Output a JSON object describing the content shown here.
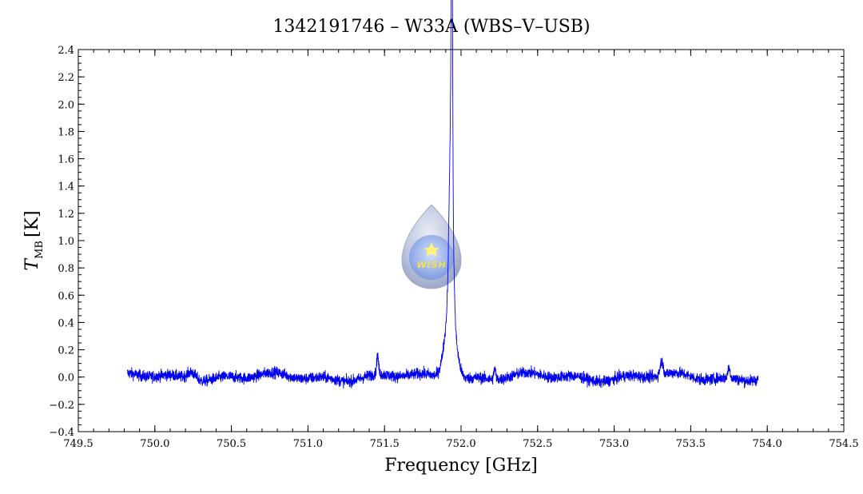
{
  "chart_data": {
    "type": "line",
    "title": "1342191746 – W33A (WBS–V–USB)",
    "xlabel": "Frequency [GHz]",
    "ylabel_main": "T",
    "ylabel_sub": "MB",
    "ylabel_unit": "[K]",
    "xlim": [
      749.5,
      754.5
    ],
    "ylim": [
      -0.4,
      2.4
    ],
    "x_ticks": [
      749.5,
      750.0,
      750.5,
      751.0,
      751.5,
      752.0,
      752.5,
      753.0,
      753.5,
      754.0,
      754.5
    ],
    "x_tick_labels": [
      "749.5",
      "750.0",
      "750.5",
      "751.0",
      "751.5",
      "752.0",
      "752.5",
      "753.0",
      "753.5",
      "754.0",
      "754.5"
    ],
    "y_ticks": [
      -0.4,
      -0.2,
      0.0,
      0.2,
      0.4,
      0.6,
      0.8,
      1.0,
      1.2,
      1.4,
      1.6,
      1.8,
      2.0,
      2.2,
      2.4
    ],
    "y_tick_labels": [
      "−0.4",
      "−0.2",
      "0.0",
      "0.2",
      "0.4",
      "0.6",
      "0.8",
      "1.0",
      "1.2",
      "1.4",
      "1.6",
      "1.8",
      "2.0",
      "2.2",
      "2.4"
    ],
    "grid": false,
    "series_color": "#0000ee",
    "spectrum": {
      "x_start": 749.82,
      "x_end": 753.94,
      "baseline": 0.0,
      "noise_amplitude": 0.035,
      "features": [
        {
          "center": 751.94,
          "peak": 2.14,
          "width": 0.004
        },
        {
          "center": 751.935,
          "peak": 1.4,
          "width": 0.012
        },
        {
          "center": 751.93,
          "peak": 0.55,
          "width": 0.035
        },
        {
          "center": 751.455,
          "peak": 0.14,
          "width": 0.006
        },
        {
          "center": 750.24,
          "peak": 0.06,
          "width": 0.03
        },
        {
          "center": 752.22,
          "peak": 0.08,
          "width": 0.006
        },
        {
          "center": 753.31,
          "peak": 0.1,
          "width": 0.01
        },
        {
          "center": 753.75,
          "peak": 0.07,
          "width": 0.008
        }
      ]
    }
  },
  "logo": {
    "text": "WISH",
    "colors": {
      "outer": "#aab4d2",
      "inner": "#8aa8e8",
      "star": "#fff27a"
    }
  }
}
